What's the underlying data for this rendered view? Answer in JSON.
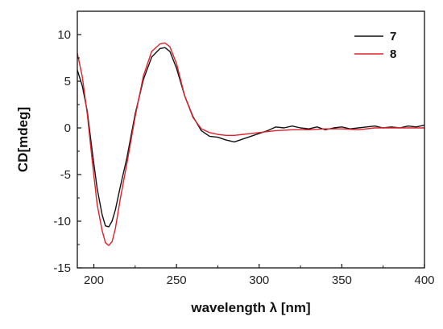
{
  "chart_data": {
    "type": "line",
    "title": "",
    "xlabel": "wavelength λ [nm]",
    "ylabel": "CD[mdeg]",
    "xlim": [
      190,
      400
    ],
    "ylim": [
      -15,
      12.5
    ],
    "xticks": [
      200,
      250,
      300,
      350,
      400
    ],
    "xtick_labels": [
      "200",
      "250",
      "300",
      "350",
      "400"
    ],
    "yticks": [
      -15,
      -10,
      -5,
      0,
      5,
      10
    ],
    "ytick_labels": [
      "-15",
      "-10",
      "-5",
      "0",
      "5",
      "10"
    ],
    "grid": false,
    "legend_position": "top-right",
    "series": [
      {
        "name": "7",
        "color": "#111111",
        "x": [
          190,
          193,
          196,
          199,
          202,
          205,
          207,
          209,
          211,
          213,
          216,
          220,
          225,
          230,
          235,
          240,
          243,
          246,
          250,
          255,
          260,
          265,
          270,
          275,
          280,
          285,
          290,
          295,
          300,
          305,
          310,
          315,
          320,
          325,
          330,
          335,
          340,
          345,
          350,
          355,
          360,
          365,
          370,
          375,
          380,
          385,
          390,
          395,
          400
        ],
        "y": [
          6.2,
          4.5,
          1.8,
          -2.5,
          -6.5,
          -9.3,
          -10.5,
          -10.6,
          -10.0,
          -8.8,
          -6.3,
          -3.2,
          1.5,
          5.2,
          7.6,
          8.5,
          8.6,
          8.2,
          6.4,
          3.4,
          1.2,
          -0.3,
          -0.9,
          -1.0,
          -1.3,
          -1.5,
          -1.2,
          -0.9,
          -0.6,
          -0.3,
          0.1,
          0.0,
          0.2,
          0.0,
          -0.1,
          0.1,
          -0.2,
          0.0,
          0.1,
          -0.1,
          0.0,
          0.1,
          0.2,
          0.0,
          0.1,
          0.0,
          0.2,
          0.1,
          0.3
        ]
      },
      {
        "name": "8",
        "color": "#e0202a",
        "x": [
          190,
          193,
          196,
          199,
          202,
          205,
          207,
          209,
          211,
          213,
          216,
          220,
          225,
          230,
          235,
          240,
          243,
          246,
          250,
          255,
          260,
          265,
          270,
          275,
          280,
          285,
          290,
          295,
          300,
          310,
          320,
          330,
          340,
          350,
          360,
          370,
          380,
          390,
          400
        ],
        "y": [
          8.0,
          5.5,
          1.5,
          -3.5,
          -8.2,
          -11.0,
          -12.3,
          -12.6,
          -12.2,
          -10.8,
          -7.6,
          -3.8,
          1.2,
          5.6,
          8.2,
          9.0,
          9.1,
          8.7,
          6.9,
          3.4,
          1.1,
          -0.1,
          -0.5,
          -0.7,
          -0.8,
          -0.8,
          -0.7,
          -0.6,
          -0.5,
          -0.3,
          -0.2,
          -0.2,
          -0.1,
          -0.1,
          -0.2,
          0.0,
          0.0,
          0.0,
          0.0
        ]
      }
    ]
  }
}
